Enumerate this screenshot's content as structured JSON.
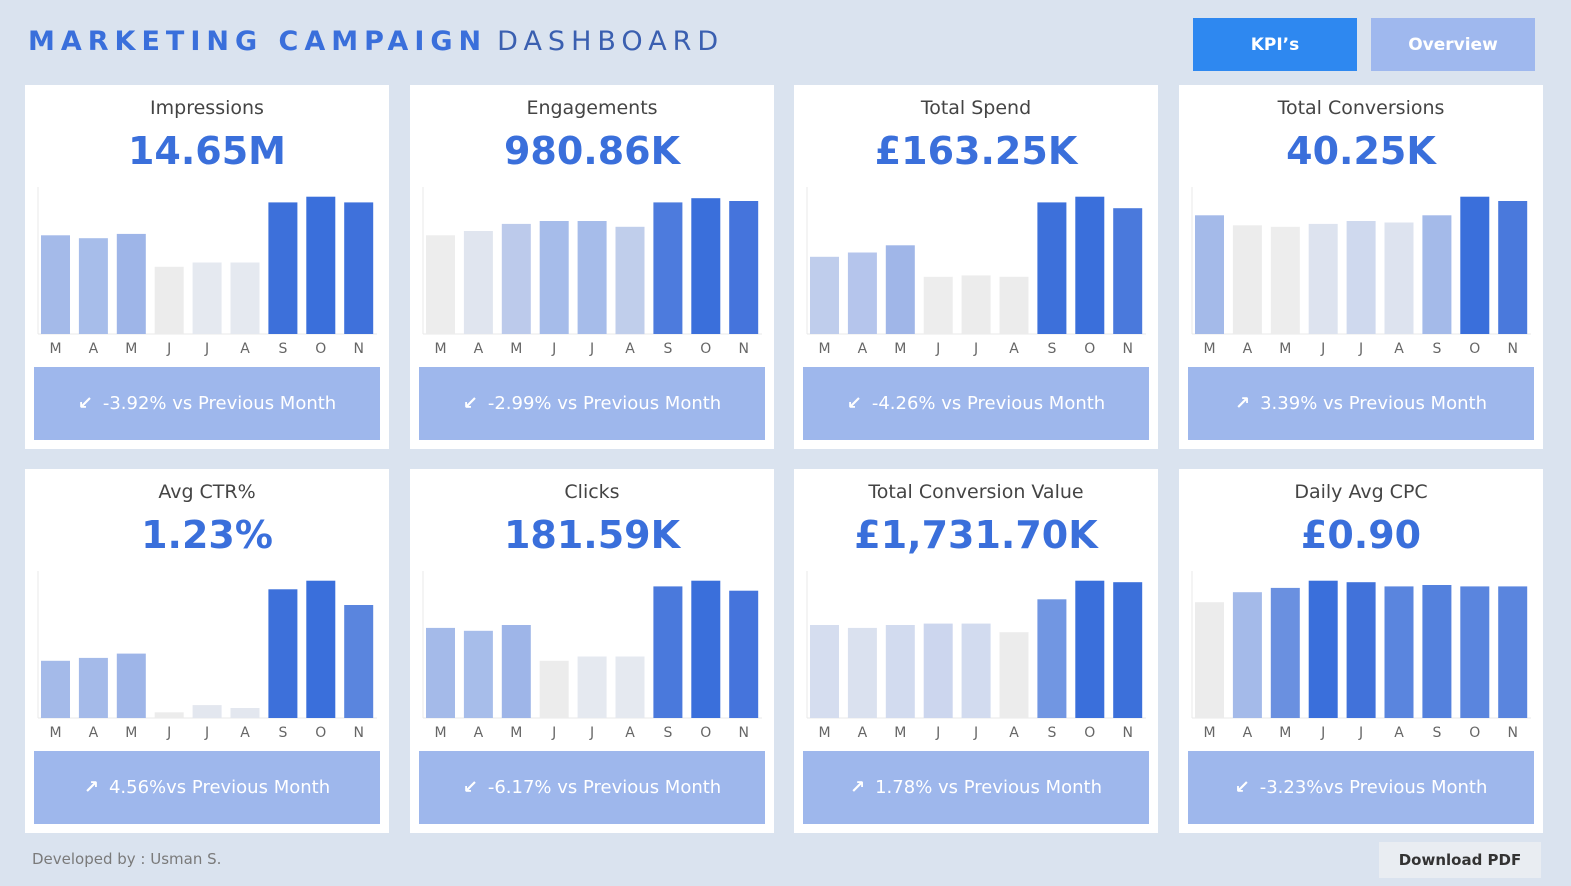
{
  "header": {
    "title_bold": "MARKETING CAMPAIGN",
    "title_light": "DASHBOARD",
    "kpi_button": "KPI’s",
    "overview_button": "Overview"
  },
  "footer": {
    "developed_by": "Developed by : Usman S.",
    "download_button": "Download PDF"
  },
  "colors": {
    "accent": "#3a6fdb",
    "kpi_button": "#2e88f0",
    "overview_button": "#9fb8ee",
    "delta_bg": "#9eb7ec",
    "background": "#dae3ef"
  },
  "cards": [
    {
      "title": "Impressions",
      "value": "14.65M",
      "delta_icon": "arrow-down-left-icon",
      "delta": "-3.92% vs Previous Month"
    },
    {
      "title": "Engagements",
      "value": "980.86K",
      "delta_icon": "arrow-down-left-icon",
      "delta": "-2.99% vs Previous Month"
    },
    {
      "title": "Total Spend",
      "value": "£163.25K",
      "delta_icon": "arrow-down-left-icon",
      "delta": "-4.26% vs Previous Month"
    },
    {
      "title": "Total Conversions",
      "value": "40.25K",
      "delta_icon": "arrow-up-right-icon",
      "delta": "3.39% vs Previous Month"
    },
    {
      "title": "Avg CTR%",
      "value": "1.23%",
      "delta_icon": "arrow-up-right-icon",
      "delta": "4.56%vs Previous Month"
    },
    {
      "title": "Clicks",
      "value": "181.59K",
      "delta_icon": "arrow-down-left-icon",
      "delta": "-6.17% vs Previous Month"
    },
    {
      "title": "Total Conversion Value",
      "value": "£1,731.70K",
      "delta_icon": "arrow-up-right-icon",
      "delta": "1.78% vs Previous Month"
    },
    {
      "title": "Daily Avg CPC",
      "value": "£0.90",
      "delta_icon": "arrow-down-left-icon",
      "delta": "-3.23%vs Previous Month"
    }
  ],
  "chart_data": [
    {
      "type": "bar",
      "categories": [
        "M",
        "A",
        "M",
        "J",
        "J",
        "A",
        "S",
        "O",
        "N"
      ],
      "values": [
        69,
        67,
        70,
        47,
        50,
        50,
        92,
        96,
        92
      ],
      "ylim": [
        0,
        100
      ],
      "colors": [
        "#a4bae9",
        "#a7bdea",
        "#9eb5e8",
        "#ececec",
        "#e5e9f0",
        "#e5e9f0",
        "#3d70da",
        "#3a6fdb",
        "#3f71db"
      ]
    },
    {
      "type": "bar",
      "categories": [
        "M",
        "A",
        "M",
        "J",
        "J",
        "A",
        "S",
        "O",
        "N"
      ],
      "values": [
        69,
        72,
        77,
        79,
        79,
        75,
        92,
        95,
        93
      ],
      "ylim": [
        0,
        100
      ],
      "colors": [
        "#ededed",
        "#e0e5ef",
        "#bccaeb",
        "#a6bcea",
        "#a6bcea",
        "#c0ceeb",
        "#4d7bdd",
        "#3a6fdb",
        "#4574dc"
      ]
    },
    {
      "type": "bar",
      "categories": [
        "M",
        "A",
        "M",
        "J",
        "J",
        "A",
        "S",
        "O",
        "N"
      ],
      "values": [
        54,
        57,
        62,
        40,
        41,
        40,
        92,
        96,
        88
      ],
      "ylim": [
        0,
        100
      ],
      "colors": [
        "#bfcdec",
        "#b5c5ec",
        "#a0b6e8",
        "#ededed",
        "#ececec",
        "#ececec",
        "#3d70da",
        "#3a6fdb",
        "#4a79dc"
      ]
    },
    {
      "type": "bar",
      "categories": [
        "M",
        "A",
        "M",
        "J",
        "J",
        "A",
        "S",
        "O",
        "N"
      ],
      "values": [
        83,
        76,
        75,
        77,
        79,
        78,
        83,
        96,
        93
      ],
      "ylim": [
        0,
        100
      ],
      "colors": [
        "#a4bae9",
        "#ececec",
        "#ededed",
        "#dde3ef",
        "#cfd9ee",
        "#dde3ef",
        "#a4bae9",
        "#3a6fdb",
        "#4a79dc"
      ]
    },
    {
      "type": "bar",
      "categories": [
        "M",
        "A",
        "M",
        "J",
        "J",
        "A",
        "S",
        "O",
        "N"
      ],
      "values": [
        40,
        42,
        45,
        4,
        9,
        7,
        90,
        96,
        79
      ],
      "ylim": [
        0,
        100
      ],
      "colors": [
        "#a4bae9",
        "#a4bae9",
        "#9eb5e8",
        "#ececec",
        "#e3e7ef",
        "#e3e7ef",
        "#3d70da",
        "#3a6fdb",
        "#5a85de"
      ]
    },
    {
      "type": "bar",
      "categories": [
        "M",
        "A",
        "M",
        "J",
        "J",
        "A",
        "S",
        "O",
        "N"
      ],
      "values": [
        63,
        61,
        65,
        40,
        43,
        43,
        92,
        96,
        89
      ],
      "ylim": [
        0,
        100
      ],
      "colors": [
        "#a4bae9",
        "#a7bdea",
        "#9eb5e8",
        "#ececec",
        "#e5e9f0",
        "#e5e9f0",
        "#4a79dc",
        "#3a6fdb",
        "#4574dc"
      ]
    },
    {
      "type": "bar",
      "categories": [
        "M",
        "A",
        "M",
        "J",
        "J",
        "A",
        "S",
        "O",
        "N"
      ],
      "values": [
        65,
        63,
        65,
        66,
        66,
        60,
        83,
        96,
        95
      ],
      "ylim": [
        0,
        100
      ],
      "colors": [
        "#d5ddef",
        "#dae1ef",
        "#d2dbef",
        "#ccd6ee",
        "#d2dbef",
        "#ececec",
        "#7196e2",
        "#3a6fdb",
        "#3c70da"
      ]
    },
    {
      "type": "bar",
      "categories": [
        "M",
        "A",
        "M",
        "J",
        "J",
        "A",
        "S",
        "O",
        "N"
      ],
      "values": [
        81,
        88,
        91,
        96,
        95,
        92,
        93,
        92,
        92
      ],
      "ylim": [
        0,
        100
      ],
      "colors": [
        "#ececec",
        "#a4bae9",
        "#6a90e0",
        "#3a6fdb",
        "#4172da",
        "#5a85de",
        "#5481dd",
        "#5a85de",
        "#5a85de"
      ]
    }
  ]
}
